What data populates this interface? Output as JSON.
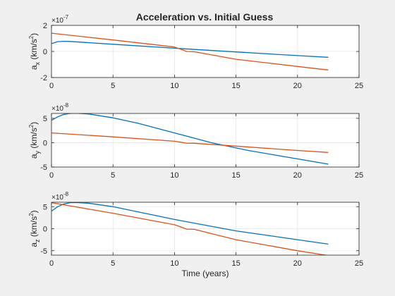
{
  "figure": {
    "title": "Acceleration vs. Initial Guess"
  },
  "colors": {
    "figure_bg": "#f0f0f0",
    "axes_bg": "#ffffff",
    "axis": "#262626",
    "grid": "#e6e6e6",
    "series": [
      "#0072bd",
      "#d95319"
    ]
  },
  "chart_data": [
    {
      "type": "line",
      "title": "Acceleration vs. Initial Guess",
      "xlabel": "",
      "ylabel_main": "a",
      "ylabel_sub": "x",
      "ylabel_unit": " (km/s",
      "ylabel_sup": "2",
      "ylabel_close": ")",
      "exponent_base": "×10",
      "exponent": "-7",
      "xlim": [
        0,
        25
      ],
      "ylim": [
        -2,
        2
      ],
      "xticks": [
        0,
        5,
        10,
        15,
        20,
        25
      ],
      "yticks": [
        -2,
        0,
        2
      ],
      "grid": true,
      "series": [
        {
          "x": [
            0,
            0.5,
            1,
            1.5,
            5,
            10,
            15,
            20,
            22.5
          ],
          "y": [
            0.6,
            0.75,
            0.78,
            0.77,
            0.55,
            0.25,
            -0.04,
            -0.32,
            -0.45
          ]
        },
        {
          "x": [
            0,
            5,
            10,
            11,
            11.6,
            15,
            20,
            22.5
          ],
          "y": [
            1.4,
            0.88,
            0.34,
            0.0,
            -0.02,
            -0.6,
            -1.15,
            -1.42
          ]
        }
      ]
    },
    {
      "type": "line",
      "xlabel": "",
      "ylabel_main": "a",
      "ylabel_sub": "y",
      "ylabel_unit": " (km/s",
      "ylabel_sup": "2",
      "ylabel_close": ")",
      "exponent_base": "×10",
      "exponent": "-8",
      "xlim": [
        0,
        25
      ],
      "ylim": [
        -5,
        6
      ],
      "xticks": [
        0,
        5,
        10,
        15,
        20,
        25
      ],
      "yticks": [
        -5,
        0,
        5
      ],
      "grid": true,
      "series": [
        {
          "x": [
            0,
            0.5,
            1,
            1.5,
            2,
            3,
            5,
            7,
            10,
            13,
            16,
            19,
            22.5
          ],
          "y": [
            4.6,
            5.3,
            5.8,
            6.0,
            6.05,
            5.9,
            5.1,
            4.0,
            2.0,
            0.0,
            -1.6,
            -2.9,
            -4.4
          ]
        },
        {
          "x": [
            0,
            5,
            10,
            11,
            11.6,
            15,
            20,
            22.5
          ],
          "y": [
            2.0,
            1.2,
            0.3,
            -0.1,
            -0.12,
            -0.7,
            -1.6,
            -2.0
          ]
        }
      ]
    },
    {
      "type": "line",
      "xlabel": "Time (years)",
      "ylabel_main": "a",
      "ylabel_sub": "z",
      "ylabel_unit": " (km/s",
      "ylabel_sup": "2",
      "ylabel_close": ")",
      "exponent_base": "×10",
      "exponent": "-8",
      "xlim": [
        0,
        25
      ],
      "ylim": [
        -6,
        6
      ],
      "xticks": [
        0,
        5,
        10,
        15,
        20,
        25
      ],
      "yticks": [
        -5,
        0,
        5
      ],
      "grid": true,
      "series": [
        {
          "x": [
            0,
            0.5,
            1,
            1.5,
            2,
            3,
            5,
            10,
            15,
            20,
            22.5
          ],
          "y": [
            4.0,
            5.0,
            5.6,
            5.9,
            5.95,
            5.8,
            5.0,
            2.1,
            -0.5,
            -2.5,
            -3.5
          ]
        },
        {
          "x": [
            0,
            5,
            10,
            11,
            11.6,
            15,
            20,
            22.5
          ],
          "y": [
            5.9,
            3.5,
            0.9,
            -0.1,
            -0.15,
            -2.5,
            -5.0,
            -6.1
          ]
        }
      ]
    }
  ]
}
